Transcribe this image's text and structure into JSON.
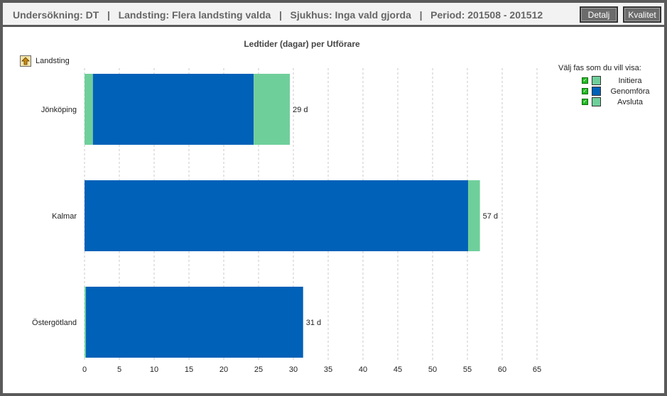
{
  "header": {
    "text": "Undersökning: DT   |   Landsting: Flera landsting valda   |   Sjukhus: Inga vald gjorda   |   Period: 201508 - 201512",
    "detalj_label": "Detalj",
    "kvalitet_label": "Kvalitet"
  },
  "drill": {
    "label": "Landsting",
    "icon": "up-arrow-icon"
  },
  "legend": {
    "title": "Välj fas som du vill visa:",
    "items": [
      {
        "label": "Initiera",
        "color": "#6fcf9b",
        "checked": true
      },
      {
        "label": "Genomföra",
        "color": "#0061b8",
        "checked": true
      },
      {
        "label": "Avsluta",
        "color": "#6fcf9b",
        "checked": true
      }
    ]
  },
  "chart_data": {
    "type": "bar",
    "orientation": "horizontal",
    "stacked": true,
    "title": "Ledtider (dagar) per Utförare",
    "categories": [
      "Jönköping",
      "Kalmar",
      "Östergötland"
    ],
    "series": [
      {
        "name": "Initiera",
        "color": "#6fcf9b",
        "values": [
          1.2,
          0,
          0.2
        ]
      },
      {
        "name": "Genomföra",
        "color": "#0061b8",
        "values": [
          23.1,
          55.1,
          31.2
        ]
      },
      {
        "name": "Avsluta",
        "color": "#6fcf9b",
        "values": [
          5.2,
          1.7,
          0
        ]
      }
    ],
    "value_labels": [
      "29 d",
      "57 d",
      "31 d"
    ],
    "xlim": [
      0,
      65
    ],
    "xticks": [
      "0",
      "5",
      "10",
      "15",
      "20",
      "25",
      "30",
      "35",
      "40",
      "45",
      "50",
      "55",
      "60",
      "65"
    ],
    "grid": true
  }
}
